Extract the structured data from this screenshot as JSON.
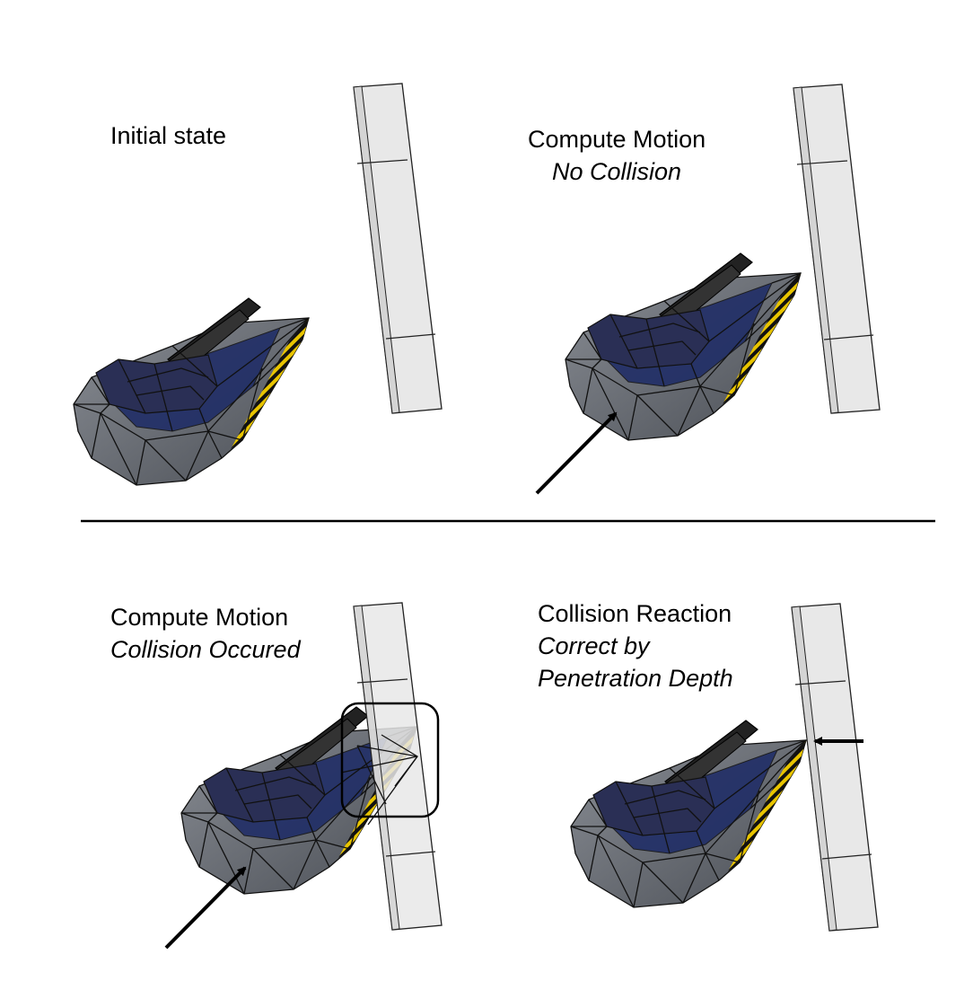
{
  "panels": [
    {
      "id": "initial",
      "title": "Initial state",
      "subtitle": ""
    },
    {
      "id": "motion-no-collision",
      "title": "Compute Motion",
      "subtitle": "No Collision"
    },
    {
      "id": "motion-collision",
      "title": "Compute Motion",
      "subtitle": "Collision Occured"
    },
    {
      "id": "reaction",
      "title": "Collision Reaction",
      "subtitle": "Correct by",
      "subtitle2": "Penetration Depth"
    }
  ],
  "colors": {
    "wall_fill": "#e8e8e8",
    "wall_stroke": "#222222",
    "hull": "#6e7278",
    "hull_dark": "#3b3f46",
    "cockpit": "#1c2a66",
    "stripe_yellow": "#e8c400",
    "divider": "#000000"
  },
  "icons": [
    "spaceship-icon",
    "wall-block-icon",
    "motion-arrow-icon",
    "contact-highlight-icon",
    "correction-arrow-icon"
  ]
}
